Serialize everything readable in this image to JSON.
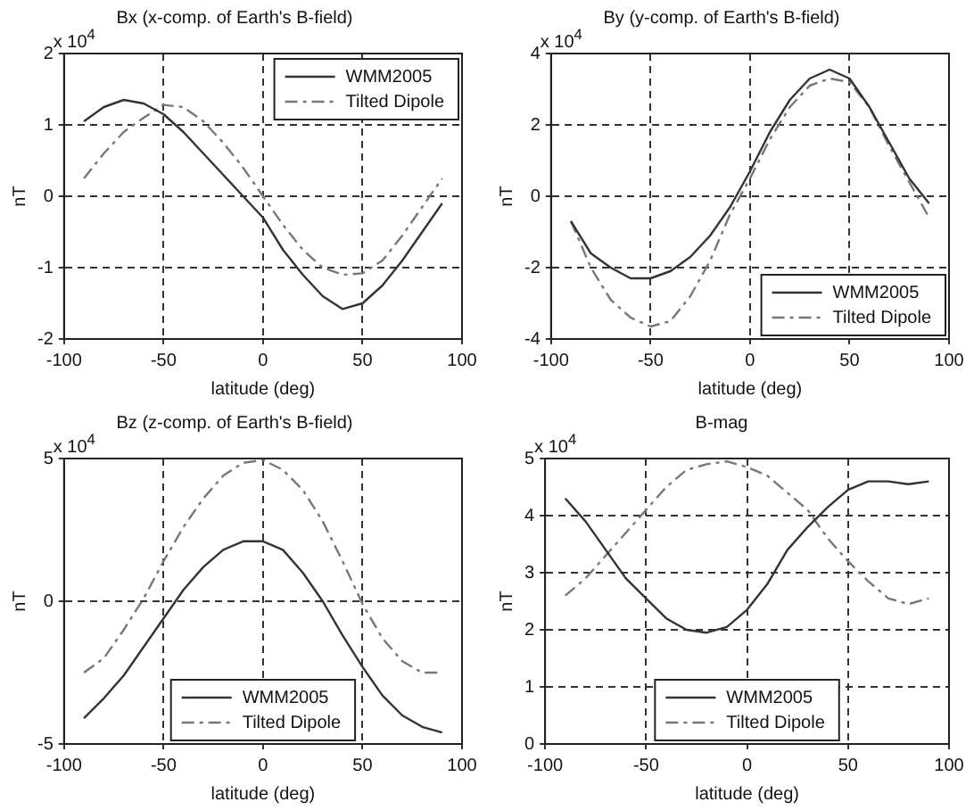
{
  "chart_data": [
    {
      "type": "line",
      "title": "Bx (x-comp. of Earth's B-field)",
      "xlabel": "latitude (deg)",
      "ylabel": "nT",
      "annotations": [
        "x 10$^{4}$"
      ],
      "x": [
        -90,
        -80,
        -70,
        -60,
        -50,
        -40,
        -30,
        -20,
        -10,
        0,
        10,
        20,
        30,
        40,
        50,
        60,
        70,
        80,
        90
      ],
      "series": [
        {
          "name": "WMM2005",
          "color": "#333333",
          "line_style": "solid",
          "values": [
            1.05,
            1.25,
            1.35,
            1.3,
            1.15,
            0.9,
            0.6,
            0.3,
            0.0,
            -0.3,
            -0.75,
            -1.1,
            -1.4,
            -1.58,
            -1.5,
            -1.25,
            -0.9,
            -0.5,
            -0.1
          ]
        },
        {
          "name": "Tilted Dipole",
          "color": "#777777",
          "line_style": "dashed",
          "values": [
            0.25,
            0.6,
            0.9,
            1.1,
            1.28,
            1.25,
            1.05,
            0.75,
            0.4,
            0.0,
            -0.4,
            -0.75,
            -1.0,
            -1.1,
            -1.08,
            -0.9,
            -0.55,
            -0.15,
            0.25
          ]
        }
      ],
      "xlim": [
        -100,
        100
      ],
      "xticks": [
        -100,
        -50,
        0,
        50,
        100
      ],
      "ylim": [
        -2,
        2
      ],
      "yticks": [
        -2,
        -1,
        0,
        1,
        2
      ],
      "grid": true,
      "legend": "top right",
      "marker": "none"
    },
    {
      "type": "line",
      "title": "By (y-comp. of Earth's B-field)",
      "xlabel": "latitude (deg)",
      "ylabel": "nT",
      "annotations": [
        "x 10$^{4}$"
      ],
      "x": [
        -90,
        -80,
        -70,
        -60,
        -50,
        -40,
        -30,
        -20,
        -10,
        0,
        10,
        20,
        30,
        40,
        50,
        60,
        70,
        80,
        90
      ],
      "series": [
        {
          "name": "WMM2005",
          "color": "#333333",
          "line_style": "solid",
          "values": [
            -0.7,
            -1.6,
            -2.0,
            -2.3,
            -2.3,
            -2.1,
            -1.7,
            -1.1,
            -0.3,
            0.7,
            1.8,
            2.7,
            3.3,
            3.55,
            3.3,
            2.5,
            1.5,
            0.5,
            -0.2
          ]
        },
        {
          "name": "Tilted Dipole",
          "color": "#777777",
          "line_style": "dashed",
          "values": [
            -0.7,
            -2.0,
            -2.9,
            -3.4,
            -3.65,
            -3.5,
            -2.8,
            -1.8,
            -0.5,
            0.5,
            1.6,
            2.5,
            3.1,
            3.3,
            3.2,
            2.5,
            1.4,
            0.4,
            -0.6
          ]
        }
      ],
      "xlim": [
        -100,
        100
      ],
      "xticks": [
        -100,
        -50,
        0,
        50,
        100
      ],
      "ylim": [
        -4,
        4
      ],
      "yticks": [
        -4,
        -2,
        0,
        2,
        4
      ],
      "grid": true,
      "legend": "bottom right",
      "marker": "none"
    },
    {
      "type": "line",
      "title": "Bz (z-comp. of Earth's B-field)",
      "xlabel": "latitude (deg)",
      "ylabel": "nT",
      "annotations": [
        "x 10$^{4}$"
      ],
      "x": [
        -90,
        -80,
        -70,
        -60,
        -50,
        -40,
        -30,
        -20,
        -10,
        0,
        10,
        20,
        30,
        40,
        50,
        60,
        70,
        80,
        90
      ],
      "series": [
        {
          "name": "WMM2005",
          "color": "#333333",
          "line_style": "solid",
          "values": [
            -4.1,
            -3.4,
            -2.6,
            -1.6,
            -0.6,
            0.4,
            1.2,
            1.8,
            2.1,
            2.1,
            1.8,
            1.0,
            0.0,
            -1.2,
            -2.3,
            -3.3,
            -4.0,
            -4.4,
            -4.6
          ]
        },
        {
          "name": "Tilted Dipole",
          "color": "#777777",
          "line_style": "dashed",
          "values": [
            -2.5,
            -2.0,
            -1.0,
            0.1,
            1.4,
            2.6,
            3.6,
            4.4,
            4.85,
            4.95,
            4.6,
            3.9,
            2.8,
            1.4,
            -0.1,
            -1.3,
            -2.1,
            -2.5,
            -2.5
          ]
        }
      ],
      "xlim": [
        -100,
        100
      ],
      "xticks": [
        -100,
        -50,
        0,
        50,
        100
      ],
      "ylim": [
        -5,
        5
      ],
      "yticks": [
        -5,
        0,
        5
      ],
      "grid": true,
      "legend": "bottom",
      "marker": "none"
    },
    {
      "type": "line",
      "title": "B-mag",
      "xlabel": "latitude (deg)",
      "ylabel": "nT",
      "annotations": [
        "x 10$^{4}$"
      ],
      "x": [
        -90,
        -80,
        -70,
        -60,
        -50,
        -40,
        -30,
        -20,
        -10,
        0,
        10,
        20,
        30,
        40,
        50,
        60,
        70,
        80,
        90
      ],
      "series": [
        {
          "name": "WMM2005",
          "color": "#333333",
          "line_style": "solid",
          "values": [
            4.3,
            3.9,
            3.4,
            2.9,
            2.55,
            2.2,
            2.0,
            1.95,
            2.05,
            2.35,
            2.8,
            3.4,
            3.8,
            4.15,
            4.45,
            4.6,
            4.6,
            4.55,
            4.6
          ]
        },
        {
          "name": "Tilted Dipole",
          "color": "#777777",
          "line_style": "dashed",
          "values": [
            2.6,
            2.9,
            3.3,
            3.7,
            4.1,
            4.5,
            4.8,
            4.9,
            4.95,
            4.85,
            4.7,
            4.4,
            4.1,
            3.6,
            3.2,
            2.85,
            2.55,
            2.45,
            2.55
          ]
        }
      ],
      "xlim": [
        -100,
        100
      ],
      "xticks": [
        -100,
        -50,
        0,
        50,
        100
      ],
      "ylim": [
        0,
        5
      ],
      "yticks": [
        0,
        1,
        2,
        3,
        4,
        5
      ],
      "grid": true,
      "legend": "bottom",
      "marker": "none"
    }
  ]
}
